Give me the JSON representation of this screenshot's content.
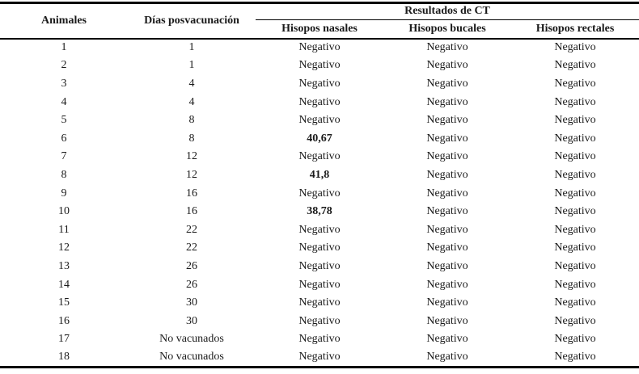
{
  "table": {
    "headers": {
      "animales": "Animales",
      "dias": "Días posvacunación",
      "resultados": "Resultados de CT",
      "nasales": "Hisopos nasales",
      "bucales": "Hisopos bucales",
      "rectales": "Hisopos rectales"
    },
    "rows": [
      {
        "animal": "1",
        "dias": "1",
        "nasal": "Negativo",
        "bucal": "Negativo",
        "rectal": "Negativo"
      },
      {
        "animal": "2",
        "dias": "1",
        "nasal": "Negativo",
        "bucal": "Negativo",
        "rectal": "Negativo"
      },
      {
        "animal": "3",
        "dias": "4",
        "nasal": "Negativo",
        "bucal": "Negativo",
        "rectal": "Negativo"
      },
      {
        "animal": "4",
        "dias": "4",
        "nasal": "Negativo",
        "bucal": "Negativo",
        "rectal": "Negativo"
      },
      {
        "animal": "5",
        "dias": "8",
        "nasal": "Negativo",
        "bucal": "Negativo",
        "rectal": "Negativo"
      },
      {
        "animal": "6",
        "dias": "8",
        "nasal": "40,67",
        "bucal": "Negativo",
        "rectal": "Negativo"
      },
      {
        "animal": "7",
        "dias": "12",
        "nasal": "Negativo",
        "bucal": "Negativo",
        "rectal": "Negativo"
      },
      {
        "animal": "8",
        "dias": "12",
        "nasal": "41,8",
        "bucal": "Negativo",
        "rectal": "Negativo"
      },
      {
        "animal": "9",
        "dias": "16",
        "nasal": "Negativo",
        "bucal": "Negativo",
        "rectal": "Negativo"
      },
      {
        "animal": "10",
        "dias": "16",
        "nasal": "38,78",
        "bucal": "Negativo",
        "rectal": "Negativo"
      },
      {
        "animal": "11",
        "dias": "22",
        "nasal": "Negativo",
        "bucal": "Negativo",
        "rectal": "Negativo"
      },
      {
        "animal": "12",
        "dias": "22",
        "nasal": "Negativo",
        "bucal": "Negativo",
        "rectal": "Negativo"
      },
      {
        "animal": "13",
        "dias": "26",
        "nasal": "Negativo",
        "bucal": "Negativo",
        "rectal": "Negativo"
      },
      {
        "animal": "14",
        "dias": "26",
        "nasal": "Negativo",
        "bucal": "Negativo",
        "rectal": "Negativo"
      },
      {
        "animal": "15",
        "dias": "30",
        "nasal": "Negativo",
        "bucal": "Negativo",
        "rectal": "Negativo"
      },
      {
        "animal": "16",
        "dias": "30",
        "nasal": "Negativo",
        "bucal": "Negativo",
        "rectal": "Negativo"
      },
      {
        "animal": "17",
        "dias": "No vacunados",
        "nasal": "Negativo",
        "bucal": "Negativo",
        "rectal": "Negativo"
      },
      {
        "animal": "18",
        "dias": "No vacunados",
        "nasal": "Negativo",
        "bucal": "Negativo",
        "rectal": "Negativo"
      }
    ]
  },
  "chart_data": {
    "type": "table",
    "title": "Resultados de CT",
    "columns": [
      "Animales",
      "Días posvacunación",
      "Hisopos nasales",
      "Hisopos bucales",
      "Hisopos rectales"
    ],
    "rows": [
      [
        "1",
        "1",
        "Negativo",
        "Negativo",
        "Negativo"
      ],
      [
        "2",
        "1",
        "Negativo",
        "Negativo",
        "Negativo"
      ],
      [
        "3",
        "4",
        "Negativo",
        "Negativo",
        "Negativo"
      ],
      [
        "4",
        "4",
        "Negativo",
        "Negativo",
        "Negativo"
      ],
      [
        "5",
        "8",
        "Negativo",
        "Negativo",
        "Negativo"
      ],
      [
        "6",
        "8",
        "40,67",
        "Negativo",
        "Negativo"
      ],
      [
        "7",
        "12",
        "Negativo",
        "Negativo",
        "Negativo"
      ],
      [
        "8",
        "12",
        "41,8",
        "Negativo",
        "Negativo"
      ],
      [
        "9",
        "16",
        "Negativo",
        "Negativo",
        "Negativo"
      ],
      [
        "10",
        "16",
        "38,78",
        "Negativo",
        "Negativo"
      ],
      [
        "11",
        "22",
        "Negativo",
        "Negativo",
        "Negativo"
      ],
      [
        "12",
        "22",
        "Negativo",
        "Negativo",
        "Negativo"
      ],
      [
        "13",
        "26",
        "Negativo",
        "Negativo",
        "Negativo"
      ],
      [
        "14",
        "26",
        "Negativo",
        "Negativo",
        "Negativo"
      ],
      [
        "15",
        "30",
        "Negativo",
        "Negativo",
        "Negativo"
      ],
      [
        "16",
        "30",
        "Negativo",
        "Negativo",
        "Negativo"
      ],
      [
        "17",
        "No vacunados",
        "Negativo",
        "Negativo",
        "Negativo"
      ],
      [
        "18",
        "No vacunados",
        "Negativo",
        "Negativo",
        "Negativo"
      ]
    ]
  },
  "colors": {
    "text": "#1a1a1a",
    "border": "#000000",
    "background": "#ffffff"
  }
}
